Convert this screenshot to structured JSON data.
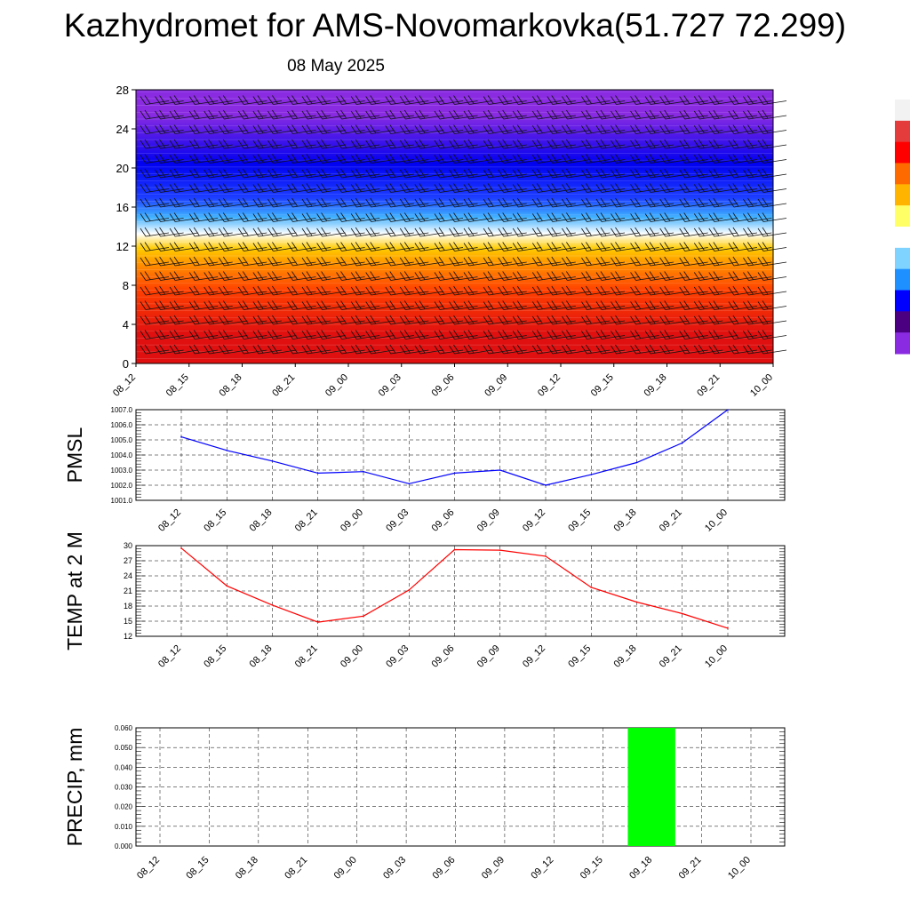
{
  "header": {
    "title": "Kazhydromet for AMS-Novomarkovka(51.727 72.299)",
    "subtitle": "08 May 2025"
  },
  "colors": {
    "pmsl_line": "#0000ff",
    "temp_line": "#ff0000",
    "precip_bar": "#00ff00",
    "colorbar": [
      "#f2f2f2",
      "#e43c3c",
      "#ff0000",
      "#ff6a00",
      "#ffb400",
      "#ffff66",
      "#ffffff",
      "#7fd4ff",
      "#1e90ff",
      "#0000ff",
      "#4b0082",
      "#8a2be2"
    ]
  },
  "chart_data": [
    {
      "type": "heatmap",
      "name": "wind-temperature-cross-section",
      "x": [
        "08_12",
        "08_15",
        "08_18",
        "08_21",
        "09_00",
        "09_03",
        "09_06",
        "09_09",
        "09_12",
        "09_15",
        "09_18",
        "09_21",
        "10_00"
      ],
      "ylim": [
        0,
        28
      ],
      "yticks": [
        0,
        4,
        8,
        12,
        16,
        20,
        24,
        28
      ],
      "color_bands": [
        {
          "from": 0,
          "to": 6,
          "color": "#e01010"
        },
        {
          "from": 6,
          "to": 9,
          "color": "#ff4000"
        },
        {
          "from": 9,
          "to": 11,
          "color": "#ff8c00"
        },
        {
          "from": 11,
          "to": 12.5,
          "color": "#ffcc00"
        },
        {
          "from": 12.5,
          "to": 14,
          "color": "#ffffff"
        },
        {
          "from": 14,
          "to": 16,
          "color": "#3fb0ff"
        },
        {
          "from": 16,
          "to": 18,
          "color": "#1c3cff"
        },
        {
          "from": 18,
          "to": 23,
          "color": "#0000f0"
        },
        {
          "from": 23,
          "to": 28,
          "color": "#8a2be2"
        }
      ],
      "barbs": true
    },
    {
      "type": "line",
      "name": "pmsl",
      "ylabel": "PMSL",
      "x": [
        "08_12",
        "08_15",
        "08_18",
        "08_21",
        "09_00",
        "09_03",
        "09_06",
        "09_09",
        "09_12",
        "09_15",
        "09_18",
        "09_21",
        "10_00"
      ],
      "series": [
        {
          "values": [
            1005.2,
            1004.3,
            1003.6,
            1002.8,
            1002.9,
            1002.1,
            1002.8,
            1003.0,
            1002.0,
            1002.7,
            1003.5,
            1004.8,
            1007.0
          ]
        }
      ],
      "ylim": [
        1001.0,
        1007.0
      ],
      "yticks": [
        "1001.0",
        "1002.0",
        "1003.0",
        "1004.0",
        "1005.0",
        "1006.0",
        "1007.0"
      ],
      "grid": true
    },
    {
      "type": "line",
      "name": "temp",
      "ylabel": "TEMP at 2 M",
      "x": [
        "08_12",
        "08_15",
        "08_18",
        "08_21",
        "09_00",
        "09_03",
        "09_06",
        "09_09",
        "09_12",
        "09_15",
        "09_18",
        "09_21",
        "10_00"
      ],
      "series": [
        {
          "values": [
            29.5,
            22.0,
            18.2,
            14.8,
            16.0,
            21.2,
            29.2,
            29.1,
            27.9,
            21.7,
            18.8,
            16.5,
            13.6
          ]
        }
      ],
      "ylim": [
        12,
        30
      ],
      "yticks": [
        "12",
        "15",
        "18",
        "21",
        "24",
        "27",
        "30"
      ],
      "grid": true
    },
    {
      "type": "bar",
      "name": "precip",
      "ylabel": "PRECIP, mm",
      "categories": [
        "08_12",
        "08_15",
        "08_18",
        "08_21",
        "09_00",
        "09_03",
        "09_06",
        "09_09",
        "09_12",
        "09_15",
        "09_18",
        "09_21",
        "10_00"
      ],
      "values": [
        0,
        0,
        0,
        0,
        0,
        0,
        0,
        0,
        0,
        0,
        0.06,
        0,
        0
      ],
      "ylim": [
        0.0,
        0.06
      ],
      "yticks": [
        "0.000",
        "0.010",
        "0.020",
        "0.030",
        "0.040",
        "0.050",
        "0.060"
      ],
      "grid": true
    }
  ]
}
